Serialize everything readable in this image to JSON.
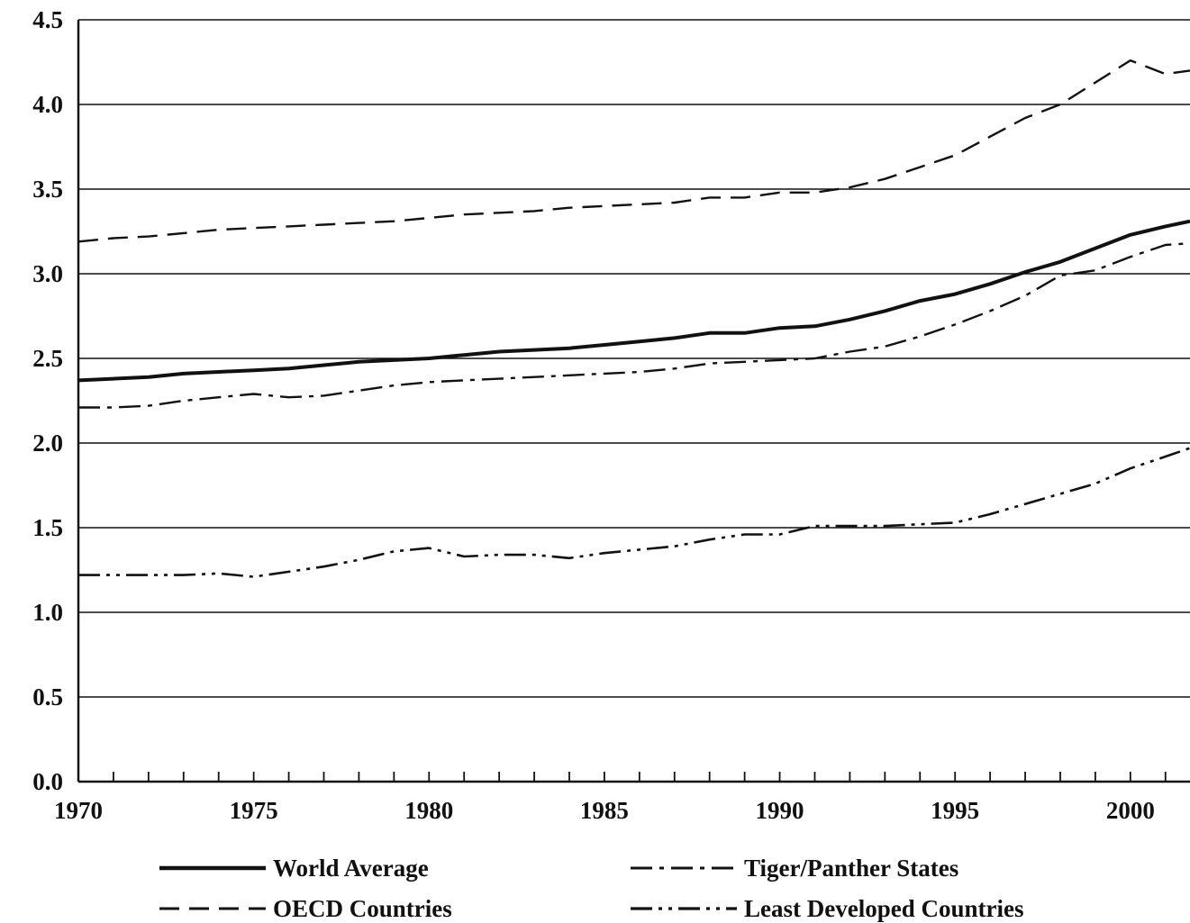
{
  "chart_data": {
    "type": "line",
    "title": "",
    "xlabel": "",
    "ylabel": "",
    "xlim": [
      1970,
      2001.7
    ],
    "ylim": [
      0,
      4.5
    ],
    "grid": "horizontal",
    "legend_position": "bottom",
    "x_ticks": [
      1970,
      1975,
      1980,
      1985,
      1990,
      1995,
      2000
    ],
    "x_tick_labels": [
      "1970",
      "1975",
      "1980",
      "1985",
      "1990",
      "1995",
      "2000"
    ],
    "y_ticks": [
      0,
      0.5,
      1,
      1.5,
      2,
      2.5,
      3,
      3.5,
      4,
      4.5
    ],
    "y_tick_labels": [
      "0.0",
      "0.5",
      "1.0",
      "1.5",
      "2.0",
      "2.5",
      "3.0",
      "3.5",
      "4.0",
      "4.5"
    ],
    "x": [
      1970,
      1971,
      1972,
      1973,
      1974,
      1975,
      1976,
      1977,
      1978,
      1979,
      1980,
      1981,
      1982,
      1983,
      1984,
      1985,
      1986,
      1987,
      1988,
      1989,
      1990,
      1991,
      1992,
      1993,
      1994,
      1995,
      1996,
      1997,
      1998,
      1999,
      2000,
      2001,
      2001.7
    ],
    "series": [
      {
        "name": "World Average",
        "style": "solid",
        "values": [
          2.37,
          2.38,
          2.39,
          2.41,
          2.42,
          2.43,
          2.44,
          2.46,
          2.48,
          2.49,
          2.5,
          2.52,
          2.54,
          2.55,
          2.56,
          2.58,
          2.6,
          2.62,
          2.65,
          2.65,
          2.68,
          2.69,
          2.73,
          2.78,
          2.84,
          2.88,
          2.94,
          3.01,
          3.07,
          3.15,
          3.23,
          3.28,
          3.31
        ]
      },
      {
        "name": "Tiger/Panther States",
        "style": "dash-dot",
        "values": [
          2.21,
          2.21,
          2.22,
          2.25,
          2.27,
          2.29,
          2.27,
          2.28,
          2.31,
          2.34,
          2.36,
          2.37,
          2.38,
          2.39,
          2.4,
          2.41,
          2.42,
          2.44,
          2.47,
          2.48,
          2.49,
          2.5,
          2.54,
          2.57,
          2.63,
          2.7,
          2.78,
          2.87,
          2.99,
          3.02,
          3.1,
          3.17,
          3.18
        ]
      },
      {
        "name": "OECD Countries",
        "style": "dashed",
        "values": [
          3.19,
          3.21,
          3.22,
          3.24,
          3.26,
          3.27,
          3.28,
          3.29,
          3.3,
          3.31,
          3.33,
          3.35,
          3.36,
          3.37,
          3.39,
          3.4,
          3.41,
          3.42,
          3.45,
          3.45,
          3.48,
          3.48,
          3.51,
          3.56,
          3.63,
          3.7,
          3.81,
          3.92,
          4.0,
          4.13,
          4.26,
          4.18,
          4.2
        ]
      },
      {
        "name": "Least Developed Countries",
        "style": "dash-dot-dot",
        "values": [
          1.22,
          1.22,
          1.22,
          1.22,
          1.23,
          1.21,
          1.24,
          1.27,
          1.31,
          1.36,
          1.38,
          1.33,
          1.34,
          1.34,
          1.32,
          1.35,
          1.37,
          1.39,
          1.43,
          1.46,
          1.46,
          1.51,
          1.51,
          1.51,
          1.52,
          1.53,
          1.58,
          1.64,
          1.7,
          1.76,
          1.85,
          1.92,
          1.97
        ]
      }
    ]
  }
}
